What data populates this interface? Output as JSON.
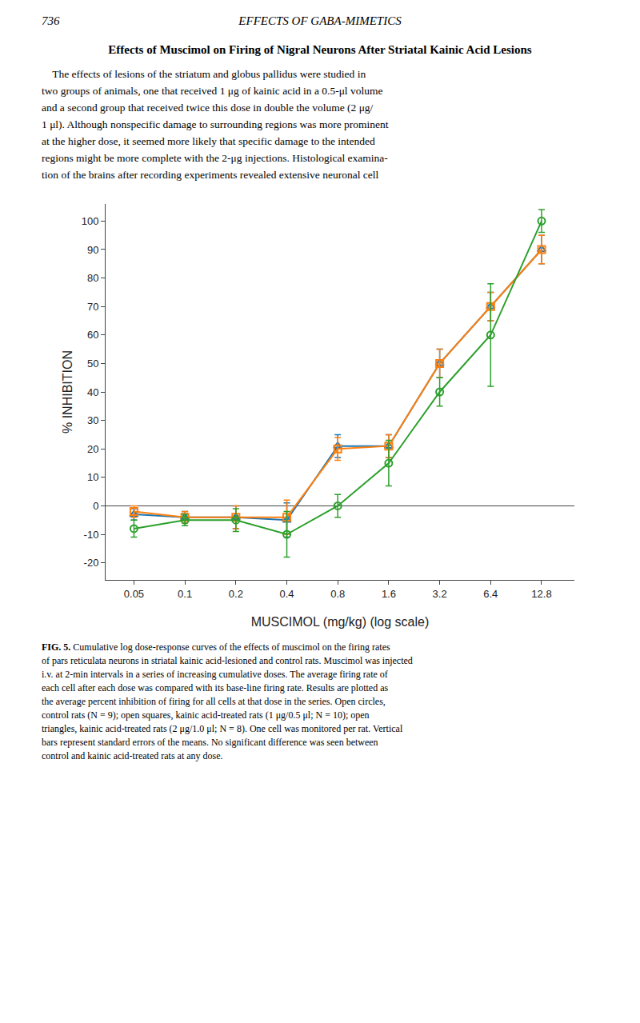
{
  "chart_data": {
    "type": "line",
    "header": [
      "736",
      "EFFECTS OF GABA-MIMETICS"
    ],
    "title": "Effects of Muscimol on Firing of Nigral Neurons After Striatal Kainic Acid Lesions",
    "body": [
      "    The effects of lesions of the striatum and globus pallidus were studied in",
      "two groups of animals, one that received 1 μg of kainic acid in a 0.5-μl volume",
      "and a second group that received twice this dose in double the volume (2 μg/",
      "1 μl). Although nonspecific damage to surrounding regions was more prominent",
      "at the higher dose, it seemed more likely that specific damage to the intended",
      "regions might be more complete with the 2-μg injections. Histological examina-",
      "tion of the brains after recording experiments revealed extensive neuronal cell"
    ],
    "caption": {
      "label": "FIG. 5.",
      "lines": [
        " Cumulative log dose-response curves of the effects of muscimol on the firing rates",
        "of pars reticulata neurons in striatal kainic acid-lesioned and control rats. Muscimol was injected",
        "i.v. at 2-min intervals in a series of increasing cumulative doses. The average firing rate of",
        "each cell after each dose was compared with its base-line firing rate. Results are plotted as",
        "the average percent inhibition of firing for all cells at that dose in the series. Open circles,",
        "control rats (N = 9); open squares, kainic acid-treated rats (1 μg/0.5 μl; N = 10); open",
        "triangles, kainic acid-treated rats (2 μg/1.0 μl; N = 8). One cell was monitored per rat. Vertical",
        "bars represent standard errors of the means. No significant difference was seen between",
        "control and kainic acid-treated rats at any dose."
      ]
    },
    "xlabel": "MUSCIMOL (mg/kg) (log scale)",
    "ylabel": "% INHIBITION",
    "log": "x",
    "grid": false,
    "x": [
      0.05,
      0.1,
      0.2,
      0.4,
      0.8,
      1.6,
      3.2,
      6.4,
      12.8
    ],
    "series": [
      {
        "marker": "triangle",
        "line_style": "solid",
        "values": [
          -3,
          -4,
          -4,
          -5,
          21,
          21,
          50,
          70,
          90
        ],
        "errors": [
          2,
          2,
          4,
          6,
          4,
          4,
          5,
          5,
          5
        ]
      },
      {
        "marker": "square",
        "line_style": "solid",
        "values": [
          -2,
          -4,
          -4,
          -4,
          20,
          21,
          50,
          70,
          90
        ],
        "errors": [
          2,
          2,
          4,
          6,
          4,
          4,
          5,
          5,
          5
        ]
      },
      {
        "marker": "circle",
        "line_style": "solid",
        "values": [
          -8,
          -5,
          -5,
          -10,
          0,
          15,
          40,
          60,
          100
        ],
        "errors": [
          3,
          2,
          4,
          8,
          4,
          8,
          5,
          18,
          4
        ]
      }
    ],
    "xlim": [
      0.034,
      20
    ],
    "xticks": [
      0.05,
      0.1,
      0.2,
      0.4,
      0.8,
      1.6,
      3.2,
      6.4,
      12.8
    ],
    "ylim": [
      -26,
      106
    ],
    "yticks": [
      -20,
      -10,
      0,
      10,
      20,
      30,
      40,
      50,
      60,
      70,
      80,
      90,
      100
    ]
  }
}
